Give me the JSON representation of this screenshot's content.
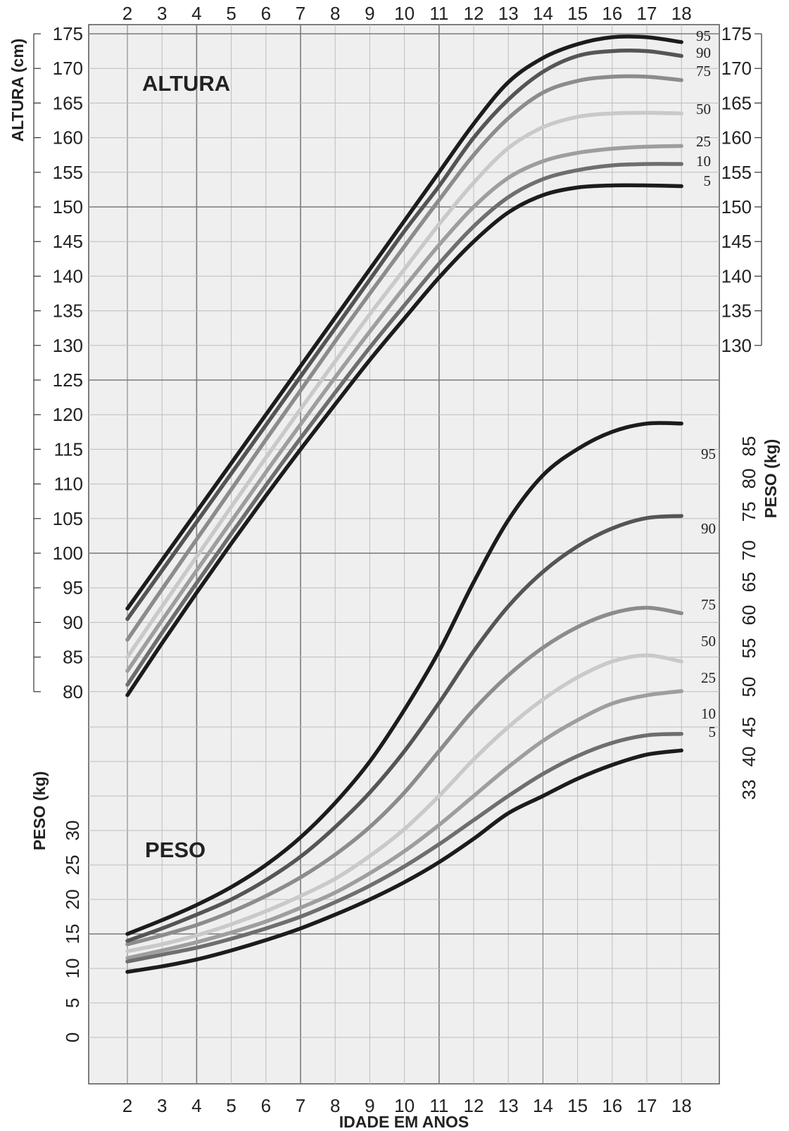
{
  "chart_data": {
    "type": "line",
    "xlabel": "IDADE EM ANOS",
    "x_ticks": [
      "2",
      "3",
      "4",
      "5",
      "6",
      "7",
      "8",
      "9",
      "10",
      "11",
      "12",
      "13",
      "14",
      "15",
      "16",
      "17",
      "18"
    ],
    "x": [
      2,
      3,
      4,
      5,
      6,
      7,
      8,
      9,
      10,
      11,
      12,
      13,
      14,
      15,
      16,
      17,
      18
    ],
    "height": {
      "section_label": "ALTURA",
      "ylabel_left": "ALTURA (cm)",
      "ylim_left": [
        80,
        175
      ],
      "yticks_left": [
        "175",
        "170",
        "165",
        "160",
        "155",
        "150",
        "145",
        "140",
        "135",
        "130",
        "125",
        "120",
        "115",
        "110",
        "105",
        "100",
        "95",
        "90",
        "85",
        "80"
      ],
      "yticks_right": [
        "175",
        "170",
        "165",
        "160",
        "155",
        "150",
        "145",
        "140",
        "135",
        "130"
      ],
      "series": [
        {
          "name": "95",
          "values": [
            92,
            99,
            106,
            113,
            120,
            127,
            134,
            141,
            148,
            155,
            162,
            168,
            171.5,
            173.5,
            174.5,
            174.5,
            173.8
          ]
        },
        {
          "name": "90",
          "values": [
            90.5,
            97.5,
            104.5,
            111.5,
            118.5,
            125.5,
            132.5,
            139.5,
            146.5,
            153,
            160,
            165.5,
            169.5,
            171.8,
            172.5,
            172.5,
            171.8
          ]
        },
        {
          "name": "75",
          "values": [
            87.5,
            94.8,
            102,
            109.2,
            116.4,
            123.5,
            130.6,
            137.5,
            144.3,
            151,
            157.5,
            162.8,
            166.5,
            168.2,
            168.8,
            168.8,
            168.3
          ]
        },
        {
          "name": "50",
          "values": [
            85,
            92.3,
            99.5,
            106.7,
            113.8,
            120.8,
            127.7,
            134.5,
            141,
            147.5,
            153.5,
            158.5,
            161.5,
            163,
            163.5,
            163.6,
            163.5
          ]
        },
        {
          "name": "25",
          "values": [
            83,
            90.3,
            97.5,
            104.6,
            111.7,
            118.6,
            125.4,
            132,
            138.4,
            144.5,
            150,
            154.2,
            156.6,
            157.8,
            158.4,
            158.7,
            158.8
          ]
        },
        {
          "name": "10",
          "values": [
            81,
            88.5,
            95.7,
            102.8,
            109.8,
            116.6,
            123.2,
            129.7,
            135.8,
            141.8,
            147.2,
            151.4,
            154,
            155.3,
            156,
            156.2,
            156.2
          ]
        },
        {
          "name": "5",
          "values": [
            79.5,
            87,
            94.3,
            101.4,
            108.3,
            115,
            121.5,
            127.9,
            133.9,
            139.8,
            145,
            149.2,
            151.7,
            152.8,
            153.1,
            153.1,
            153
          ]
        }
      ]
    },
    "weight": {
      "section_label": "PESO",
      "ylabel_left": "PESO (kg)",
      "ylabel_right": "PESO (kg)",
      "ylim": [
        0,
        85
      ],
      "yticks_left": [
        "0",
        "5",
        "10",
        "15",
        "20",
        "25",
        "30"
      ],
      "yticks_right": [
        "33",
        "40",
        "45",
        "50",
        "55",
        "60",
        "65",
        "70",
        "75",
        "80",
        "85"
      ],
      "series": [
        {
          "name": "95",
          "values": [
            15,
            17,
            19.2,
            21.8,
            25,
            29,
            34,
            40,
            47.5,
            56,
            66,
            75,
            81.5,
            85.3,
            87.8,
            89,
            89
          ]
        },
        {
          "name": "90",
          "values": [
            14,
            15.8,
            17.8,
            20,
            22.8,
            26.2,
            30.5,
            35.5,
            41.5,
            48.5,
            56,
            62.5,
            67.5,
            71.2,
            73.8,
            75.3,
            75.6
          ]
        },
        {
          "name": "75",
          "values": [
            13.5,
            14.8,
            16.3,
            18.2,
            20.5,
            23.2,
            26.5,
            30.5,
            35.5,
            41.5,
            47.5,
            52.5,
            56.5,
            59.5,
            61.5,
            62.3,
            61.5
          ]
        },
        {
          "name": "50",
          "values": [
            12.5,
            13.5,
            14.8,
            16.4,
            18.3,
            20.5,
            23,
            26.3,
            30.2,
            35,
            40.3,
            45,
            49,
            52.2,
            54.5,
            55.4,
            54.5
          ]
        },
        {
          "name": "25",
          "values": [
            11.5,
            12.6,
            13.8,
            15.2,
            16.8,
            18.8,
            21,
            23.8,
            27,
            30.8,
            35,
            39.2,
            43,
            46,
            48.4,
            49.6,
            50.2
          ]
        },
        {
          "name": "10",
          "values": [
            11,
            12,
            13,
            14.3,
            15.8,
            17.5,
            19.6,
            22,
            24.8,
            28,
            31.5,
            35,
            38.2,
            40.8,
            42.7,
            43.8,
            44
          ]
        },
        {
          "name": "5",
          "values": [
            9.5,
            10.3,
            11.3,
            12.6,
            14.1,
            15.8,
            17.8,
            20,
            22.5,
            25.4,
            28.8,
            32.5,
            35,
            37.5,
            39.5,
            41,
            41.6
          ]
        }
      ]
    },
    "grid": true,
    "series_colors": {
      "95": "#1c1c1c",
      "90": "#555555",
      "75": "#8c8c8c",
      "50": "#c9c9c9",
      "25": "#9e9e9e",
      "10": "#6e6e6e",
      "5": "#1c1c1c"
    }
  }
}
